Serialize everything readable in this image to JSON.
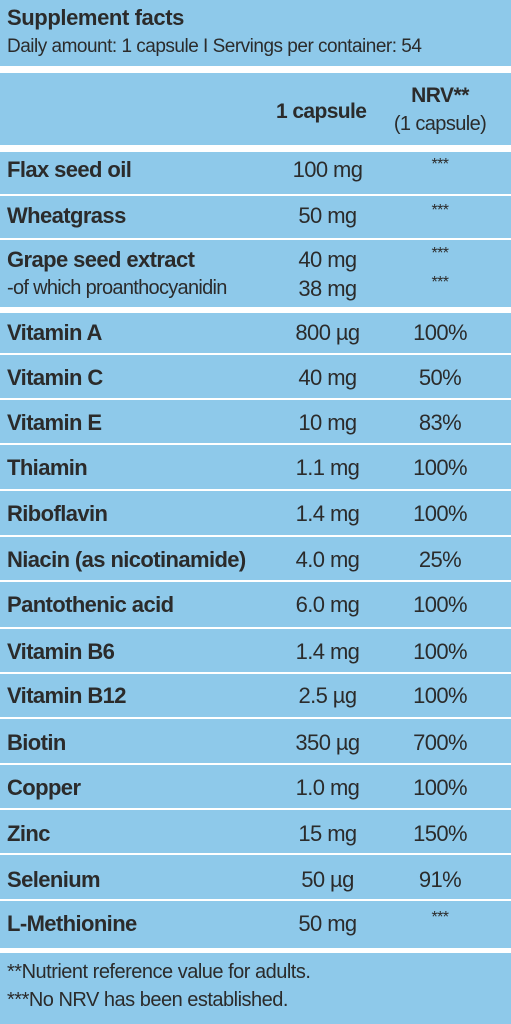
{
  "header": {
    "title": "Supplement facts",
    "subtitle": "Daily amount: 1 capsule  I  Servings per container: 54"
  },
  "columns": {
    "amount_label": "1 capsule",
    "nrv_label": "NRV**",
    "nrv_sub_label": "(1 capsule)"
  },
  "rows": [
    {
      "name": "Flax seed oil",
      "amount": "100 mg",
      "nrv": "***"
    },
    {
      "name": "Wheatgrass",
      "amount": "50 mg",
      "nrv": "***"
    },
    {
      "name": "Grape seed extract",
      "amount": "40 mg",
      "nrv": "***",
      "sub_name": "-of which proanthocyanidin",
      "sub_amount": "38 mg",
      "sub_nrv": "***"
    },
    {
      "name": "Vitamin A",
      "amount": "800 µg",
      "nrv": "100%"
    },
    {
      "name": "Vitamin C",
      "amount": "40 mg",
      "nrv": "50%"
    },
    {
      "name": "Vitamin E",
      "amount": "10 mg",
      "nrv": "83%"
    },
    {
      "name": "Thiamin",
      "amount": "1.1 mg",
      "nrv": "100%"
    },
    {
      "name": "Riboflavin",
      "amount": "1.4 mg",
      "nrv": "100%"
    },
    {
      "name": "Niacin (as nicotinamide)",
      "amount": "4.0 mg",
      "nrv": "25%"
    },
    {
      "name": "Pantothenic acid",
      "amount": "6.0 mg",
      "nrv": "100%"
    },
    {
      "name": "Vitamin B6",
      "amount": "1.4 mg",
      "nrv": "100%"
    },
    {
      "name": "Vitamin B12",
      "amount": "2.5 µg",
      "nrv": "100%"
    },
    {
      "name": "Biotin",
      "amount": "350 µg",
      "nrv": "700%"
    },
    {
      "name": "Copper",
      "amount": "1.0 mg",
      "nrv": "100%"
    },
    {
      "name": "Zinc",
      "amount": "15 mg",
      "nrv": "150%"
    },
    {
      "name": "Selenium",
      "amount": "50 µg",
      "nrv": "91%"
    },
    {
      "name": "L-Methionine",
      "amount": "50 mg",
      "nrv": "***"
    }
  ],
  "footnotes": [
    "**Nutrient reference value for adults.",
    "***No NRV has been established."
  ],
  "colors": {
    "background": "#8ec9ea",
    "rule": "#ffffff",
    "text": "#2b2b2b"
  }
}
